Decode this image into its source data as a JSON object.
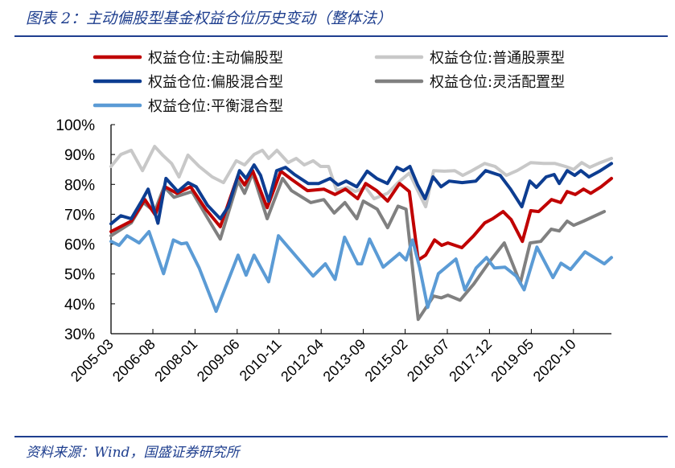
{
  "title": "图表 2：主动偏股型基金权益仓位历史变动（整体法）",
  "source": "资料来源：Wind，国盛证券研究所",
  "chart_data": {
    "type": "line",
    "title": "图表 2：主动偏股型基金权益仓位历史变动（整体法）",
    "xlabel": "",
    "ylabel": "",
    "x_unit": "decimal year",
    "xlim": [
      2005.17,
      2022.03
    ],
    "ylim": [
      30,
      100
    ],
    "y_ticks": [
      30,
      40,
      50,
      60,
      70,
      80,
      90,
      100
    ],
    "y_tick_labels": [
      "30%",
      "40%",
      "50%",
      "60%",
      "70%",
      "80%",
      "90%",
      "100%"
    ],
    "x_ticks": [
      2005.17,
      2006.58,
      2008.0,
      2009.42,
      2010.83,
      2012.25,
      2013.67,
      2015.08,
      2016.5,
      2017.92,
      2019.33,
      2020.75
    ],
    "x_tick_labels": [
      "2005-03",
      "2006-08",
      "2008-01",
      "2009-06",
      "2010-11",
      "2012-04",
      "2013-09",
      "2015-02",
      "2016-07",
      "2017-12",
      "2019-05",
      "2020-10"
    ],
    "grid": false,
    "legend_placement": "top",
    "series": [
      {
        "name": "权益仓位:普通股票型",
        "color": "#c8c8c8",
        "x": [
          2005.17,
          2005.5,
          2005.85,
          2006.23,
          2006.64,
          2006.91,
          2007.21,
          2007.46,
          2007.76,
          2008.14,
          2008.58,
          2008.96,
          2009.39,
          2009.67,
          2009.99,
          2010.27,
          2010.48,
          2010.76,
          2011.14,
          2011.41,
          2011.68,
          2011.98,
          2012.23,
          2012.5,
          2012.77,
          2013.13,
          2013.4,
          2013.75,
          2014.03,
          2014.49,
          2014.84,
          2015.22,
          2015.5,
          2015.77,
          2016.04,
          2016.4,
          2016.75,
          2017.02,
          2017.3,
          2017.76,
          2018.11,
          2018.49,
          2018.85,
          2019.31,
          2019.75,
          2020.13,
          2020.48,
          2020.76,
          2021.03,
          2021.3,
          2021.66,
          2022.03
        ],
        "values": [
          86,
          90,
          91.4,
          84.6,
          92.7,
          89.8,
          87,
          82.5,
          89.8,
          86,
          82.5,
          80.6,
          87.9,
          86.5,
          90,
          91.4,
          88.7,
          91.4,
          87.3,
          88.7,
          86.5,
          87.9,
          86,
          86,
          78,
          79,
          77.6,
          79,
          75.2,
          77,
          80.6,
          83.8,
          78,
          72.5,
          84.6,
          84.4,
          84.6,
          83,
          84.4,
          87,
          86,
          83,
          84.6,
          87.3,
          87,
          87,
          86,
          85,
          87.3,
          85.7,
          87.3,
          88.7
        ]
      },
      {
        "name": "权益仓位:灵活配置型",
        "color": "#808080",
        "x": [
          2005.17,
          2005.85,
          2006.26,
          2006.64,
          2006.96,
          2007.29,
          2007.9,
          2008.36,
          2008.85,
          2009.45,
          2009.67,
          2009.94,
          2010.43,
          2010.95,
          2011.25,
          2011.9,
          2012.34,
          2012.69,
          2013.05,
          2013.45,
          2013.67,
          2014.14,
          2014.49,
          2014.84,
          2015.11,
          2015.52,
          2016.04,
          2016.3,
          2016.52,
          2016.93,
          2017.39,
          2017.93,
          2018.42,
          2018.96,
          2019.29,
          2019.65,
          2020.0,
          2020.27,
          2020.54,
          2020.76,
          2021.09,
          2021.79
        ],
        "values": [
          62.8,
          67.1,
          73.9,
          70.9,
          79.2,
          75.7,
          77.6,
          69.8,
          61.7,
          81.1,
          77,
          83.8,
          68.5,
          82,
          77.9,
          73.9,
          74.9,
          70.4,
          73.9,
          68.5,
          74.4,
          71.7,
          65.5,
          72.7,
          71.7,
          34.8,
          42.6,
          42,
          42.9,
          41.2,
          46.6,
          54.2,
          60.4,
          46.9,
          60.4,
          60.9,
          65,
          64.4,
          67.7,
          66.3,
          67.7,
          70.9
        ]
      },
      {
        "name": "权益仓位:主动偏股型",
        "color": "#c00000",
        "x": [
          2005.17,
          2005.85,
          2006.31,
          2006.66,
          2006.99,
          2007.39,
          2007.85,
          2008.36,
          2008.85,
          2009.45,
          2009.67,
          2009.94,
          2010.43,
          2010.89,
          2011.25,
          2011.79,
          2012.34,
          2012.72,
          2013.07,
          2013.48,
          2013.75,
          2014.12,
          2014.49,
          2014.89,
          2015.22,
          2015.52,
          2015.77,
          2016.07,
          2016.31,
          2016.52,
          2016.99,
          2017.39,
          2017.76,
          2018.03,
          2018.38,
          2018.65,
          2019.03,
          2019.31,
          2019.58,
          2020.01,
          2020.32,
          2020.54,
          2020.81,
          2021.09,
          2021.33,
          2021.68,
          2022.03
        ],
        "values": [
          64.2,
          67.7,
          74.9,
          69.8,
          79.2,
          77,
          79.2,
          71.7,
          65.8,
          83,
          79.8,
          84.6,
          72.2,
          84.4,
          81.7,
          77.9,
          78.4,
          76.6,
          78.4,
          75.2,
          80.3,
          77.9,
          74.4,
          80.3,
          77.6,
          54.7,
          56.3,
          61.4,
          59.6,
          60.4,
          58.8,
          62.8,
          67.1,
          68.5,
          70.9,
          68.2,
          60.9,
          71.2,
          70.9,
          74.9,
          73.9,
          77.6,
          76.6,
          78.4,
          77,
          79.2,
          82
        ]
      },
      {
        "name": "权益仓位:偏股混合型",
        "color": "#0d3d91",
        "x": [
          2005.17,
          2005.5,
          2005.85,
          2006.2,
          2006.42,
          2006.75,
          2007.02,
          2007.42,
          2007.77,
          2008.04,
          2008.42,
          2008.85,
          2009.12,
          2009.5,
          2009.72,
          2009.99,
          2010.21,
          2010.48,
          2010.75,
          2011.05,
          2011.35,
          2011.81,
          2012.17,
          2012.55,
          2012.82,
          2013.09,
          2013.45,
          2013.8,
          2014.12,
          2014.48,
          2014.8,
          2015.02,
          2015.24,
          2015.5,
          2015.75,
          2016.02,
          2016.29,
          2016.56,
          2017.0,
          2017.46,
          2017.79,
          2018.28,
          2018.63,
          2019.01,
          2019.28,
          2019.5,
          2019.83,
          2020.1,
          2020.27,
          2020.54,
          2020.79,
          2021.0,
          2021.27,
          2021.63,
          2022.03
        ],
        "values": [
          66.8,
          69.5,
          68.5,
          74.4,
          78.4,
          67,
          82,
          77.6,
          80.6,
          79.2,
          73,
          68.5,
          72.5,
          84.6,
          82,
          86.5,
          83,
          74.4,
          84.6,
          85.7,
          83.3,
          80.3,
          80.3,
          82,
          79.8,
          81.1,
          79.2,
          84.4,
          82,
          80.3,
          85.7,
          84.6,
          86,
          79.8,
          75.2,
          82.5,
          79.2,
          81.1,
          80.6,
          81.1,
          84.6,
          83,
          78.4,
          72.5,
          81.1,
          79,
          82.5,
          83.3,
          80.3,
          84.6,
          83,
          84.6,
          82.5,
          84.4,
          87
        ]
      },
      {
        "name": "权益仓位:平衡混合型",
        "color": "#5b9bd5",
        "x": [
          2005.17,
          2005.44,
          2005.71,
          2006.12,
          2006.45,
          2006.94,
          2007.27,
          2007.54,
          2007.72,
          2008.14,
          2008.71,
          2009.45,
          2009.72,
          2009.99,
          2010.48,
          2010.81,
          2011.14,
          2011.98,
          2012.39,
          2012.72,
          2013.04,
          2013.48,
          2013.61,
          2013.88,
          2014.34,
          2014.89,
          2015.11,
          2015.33,
          2015.57,
          2015.84,
          2016.2,
          2016.79,
          2017.09,
          2017.47,
          2017.82,
          2018.09,
          2018.44,
          2018.82,
          2019.09,
          2019.52,
          2020.06,
          2020.33,
          2020.65,
          2021.14,
          2021.79,
          2022.03
        ],
        "values": [
          60.9,
          59.6,
          62.8,
          60.4,
          64.2,
          50.1,
          61.4,
          60.1,
          60.4,
          52,
          37.5,
          56.3,
          49.6,
          56.3,
          47.4,
          62.8,
          59,
          49.3,
          53.4,
          48.2,
          62.3,
          53.4,
          53.4,
          61.7,
          52.3,
          56.9,
          54.7,
          61.4,
          52,
          38.8,
          50.1,
          55,
          44.7,
          52,
          55.5,
          52,
          52.3,
          49.3,
          44.7,
          59,
          48.8,
          53.6,
          51.5,
          57.4,
          53.4,
          55.5
        ]
      }
    ]
  }
}
